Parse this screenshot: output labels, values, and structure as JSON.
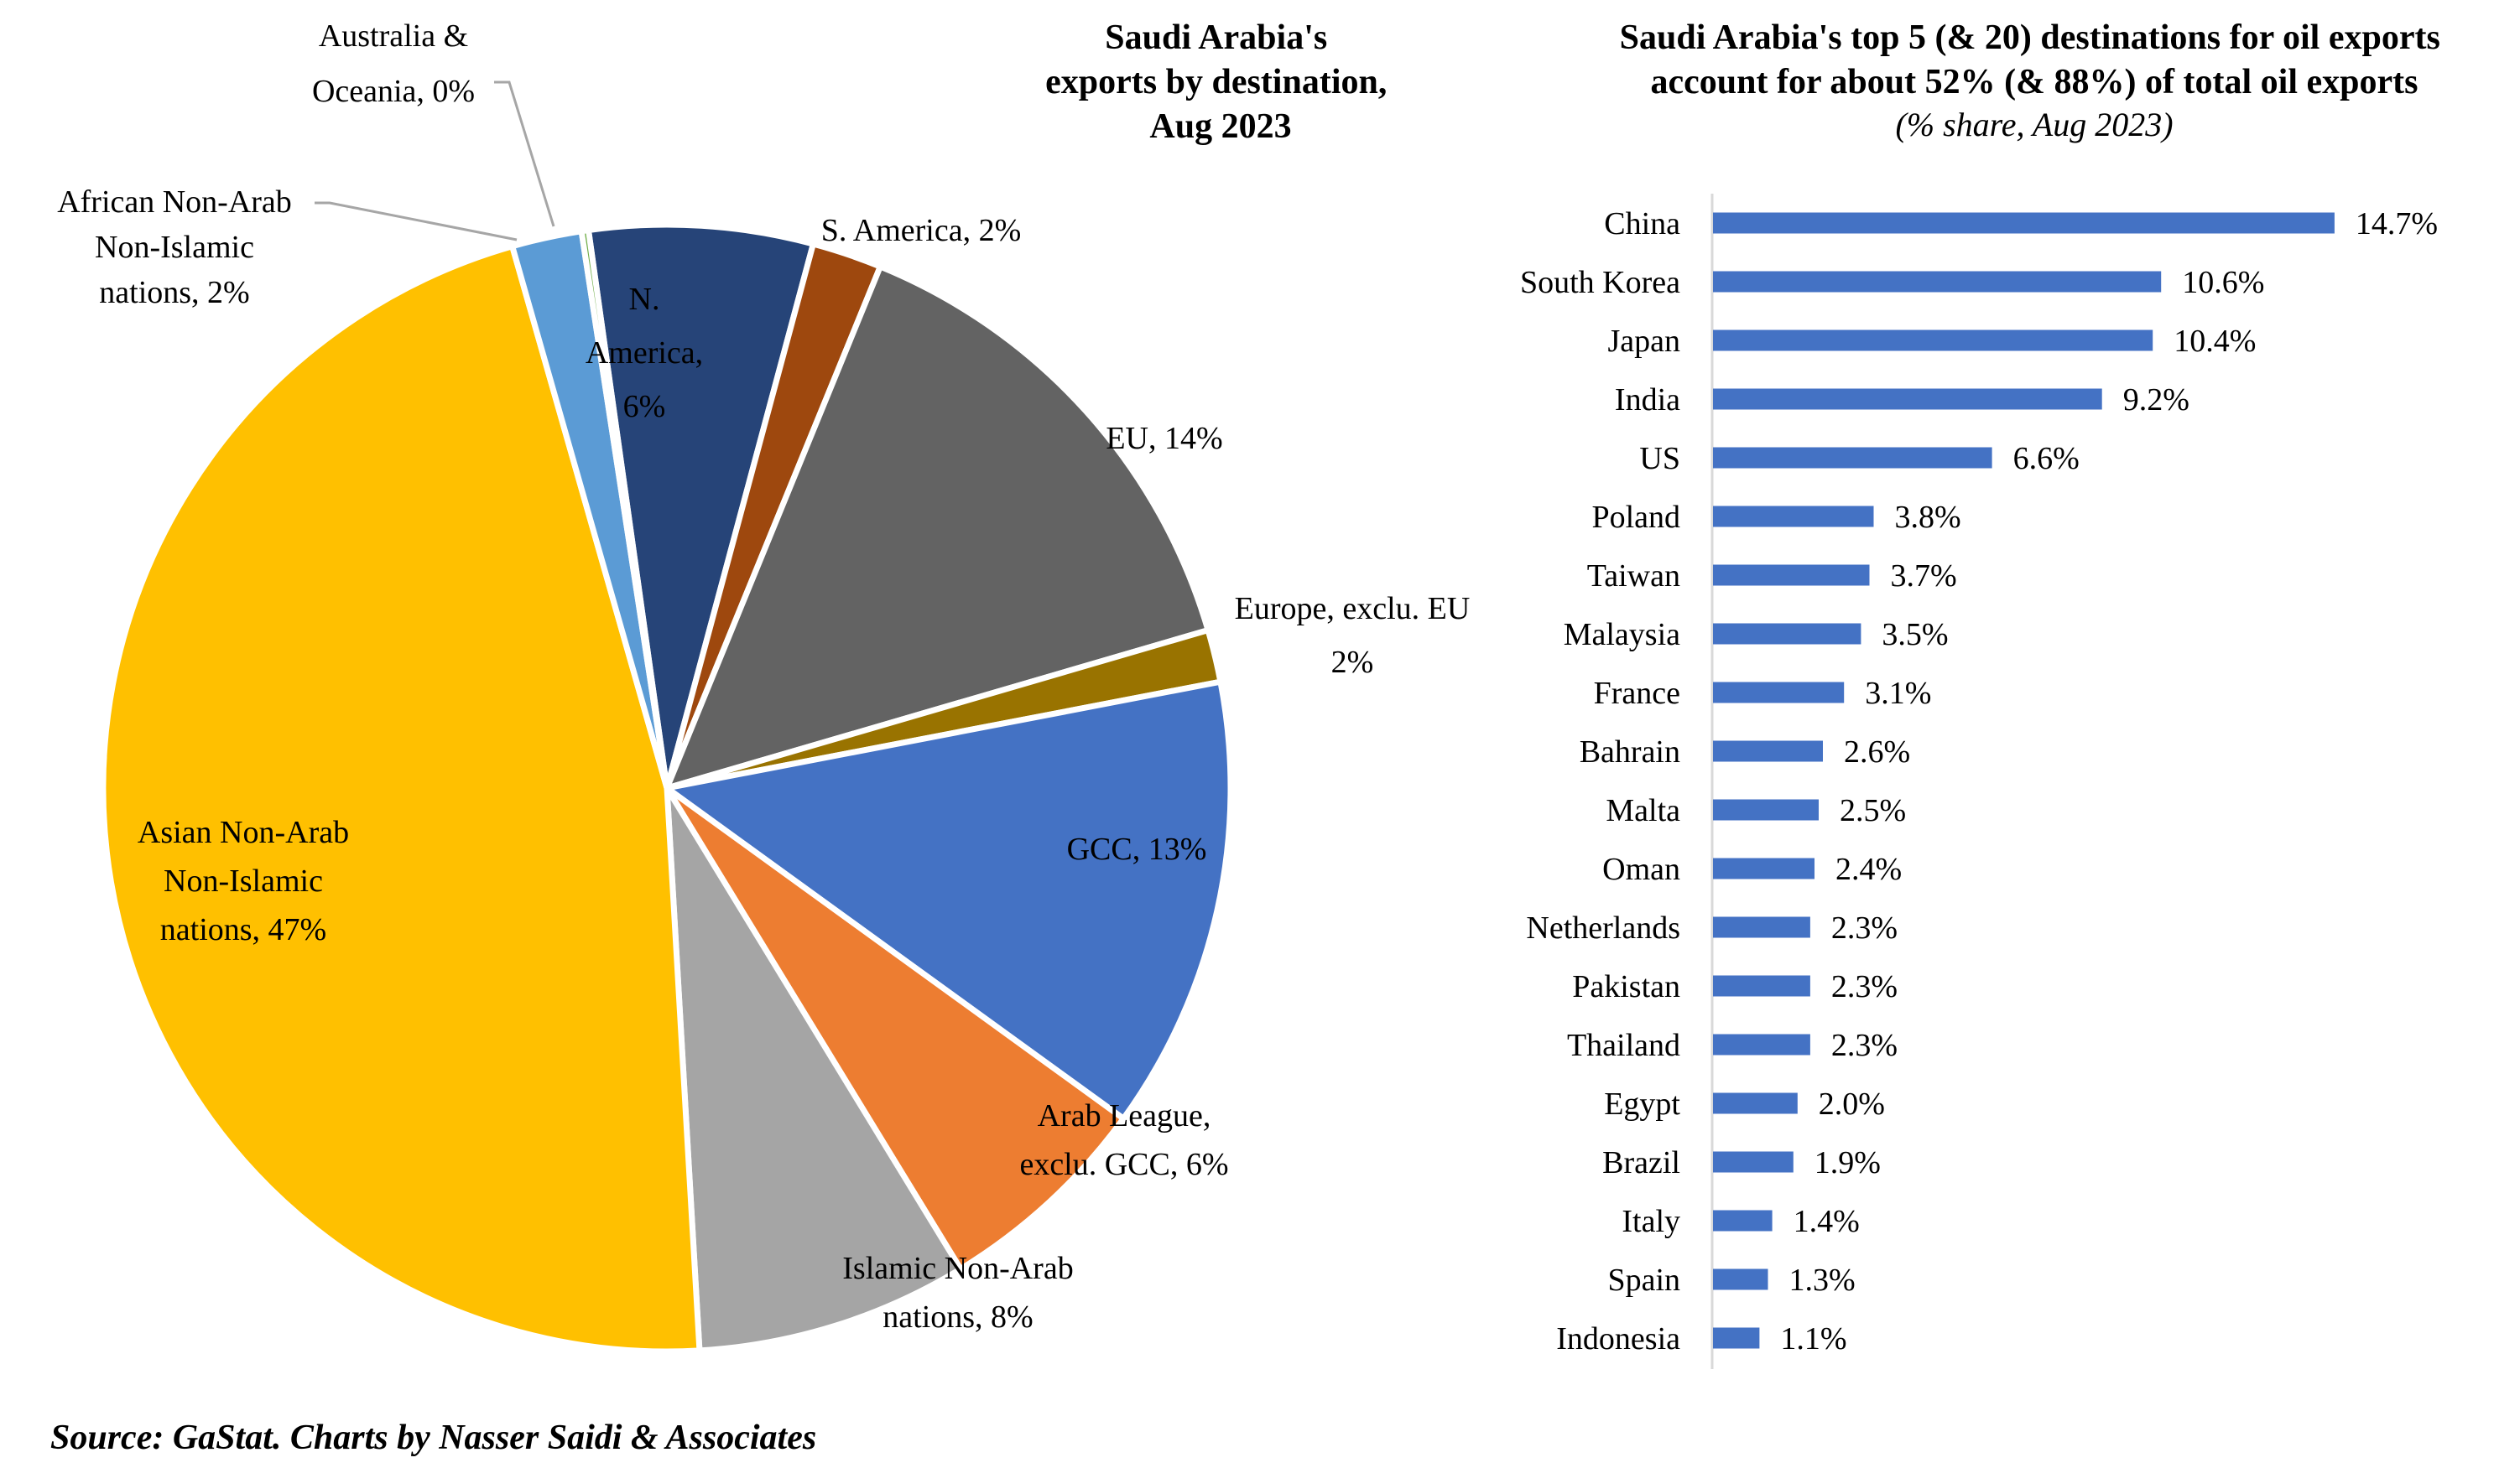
{
  "source": "Source: GaStat. Charts by Nasser Saidi & Associates",
  "chart_data": [
    {
      "type": "pie",
      "title": [
        "Saudi Arabia's",
        "exports by destination,",
        "Aug 2023"
      ],
      "unit": "% share",
      "slices": [
        {
          "name": "N. America",
          "value": 6.4,
          "label": [
            "N.",
            "America,",
            "6%"
          ],
          "color": "#264478"
        },
        {
          "name": "S. America",
          "value": 2.0,
          "label": [
            "S. America, 2%"
          ],
          "color": "#9E480E"
        },
        {
          "name": "EU",
          "value": 14.3,
          "label": [
            "EU, 14%"
          ],
          "color": "#636363"
        },
        {
          "name": "Europe, exclu. EU",
          "value": 1.5,
          "label": [
            "Europe, exclu. EU",
            "2%"
          ],
          "color": "#997300"
        },
        {
          "name": "GCC",
          "value": 13.0,
          "label": [
            "GCC, 13%"
          ],
          "color": "#4472C4"
        },
        {
          "name": "Arab League, exclu. GCC",
          "value": 6.3,
          "label": [
            "Arab League,",
            "exclu. GCC, 6%"
          ],
          "color": "#ED7D31"
        },
        {
          "name": "Islamic Non-Arab nations",
          "value": 7.8,
          "label": [
            "Islamic Non-Arab",
            "nations, 8%"
          ],
          "color": "#A5A5A5"
        },
        {
          "name": "Asian Non-Arab Non-Islamic nations",
          "value": 46.5,
          "label": [
            "Asian Non-Arab",
            "Non-Islamic",
            "nations, 47%"
          ],
          "color": "#FFC000"
        },
        {
          "name": "African Non-Arab Non-Islamic nations",
          "value": 2.0,
          "label": [
            "African Non-Arab",
            "Non-Islamic",
            "nations, 2%"
          ],
          "color": "#5B9BD5"
        },
        {
          "name": "Australia & Oceania",
          "value": 0.2,
          "label": [
            "Australia &",
            "Oceania, 0%"
          ],
          "color": "#70AD47"
        }
      ]
    },
    {
      "type": "bar",
      "orientation": "horizontal",
      "title": [
        "Saudi Arabia's top 5 (& 20) destinations for oil exports",
        "account for about 52% (& 88%) of total oil exports"
      ],
      "subtitle": "(% share, Aug 2023)",
      "xlabel": "",
      "ylabel": "",
      "xlim": [
        0,
        15
      ],
      "grid": false,
      "bar_color": "#4472C4",
      "categories": [
        "China",
        "South Korea",
        "Japan",
        "India",
        "US",
        "Poland",
        "Taiwan",
        "Malaysia",
        "France",
        "Bahrain",
        "Malta",
        "Oman",
        "Netherlands",
        "Pakistan",
        "Thailand",
        "Egypt",
        "Brazil",
        "Italy",
        "Spain",
        "Indonesia"
      ],
      "values": [
        14.7,
        10.6,
        10.4,
        9.2,
        6.6,
        3.8,
        3.7,
        3.5,
        3.1,
        2.6,
        2.5,
        2.4,
        2.3,
        2.3,
        2.3,
        2.0,
        1.9,
        1.4,
        1.3,
        1.1
      ],
      "value_labels": [
        "14.7%",
        "10.6%",
        "10.4%",
        "9.2%",
        "6.6%",
        "3.8%",
        "3.7%",
        "3.5%",
        "3.1%",
        "2.6%",
        "2.5%",
        "2.4%",
        "2.3%",
        "2.3%",
        "2.3%",
        "2.0%",
        "1.9%",
        "1.4%",
        "1.3%",
        "1.1%"
      ]
    }
  ]
}
